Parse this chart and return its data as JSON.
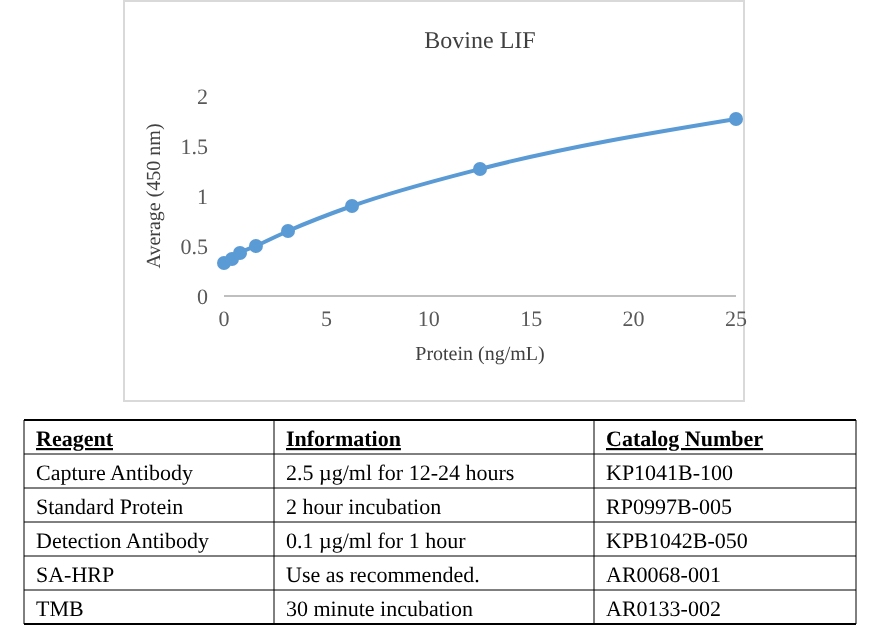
{
  "chart_data": {
    "type": "line",
    "title": "Bovine LIF",
    "xlabel": "Protein (ng/mL)",
    "ylabel": "Average (450 nm)",
    "x": [
      0,
      0.39,
      0.78,
      1.56,
      3.125,
      6.25,
      12.5,
      25
    ],
    "series": [
      {
        "color": "#5b9bd5",
        "values": [
          0.33,
          0.37,
          0.43,
          0.5,
          0.65,
          0.9,
          1.27,
          1.77
        ]
      }
    ],
    "xlim": [
      0,
      25
    ],
    "xticks": [
      0,
      5,
      10,
      15,
      20,
      25
    ],
    "ylim": [
      0,
      2
    ],
    "yticks": [
      0,
      0.5,
      1,
      1.5,
      2
    ],
    "marker": "circle",
    "line_style": "solid",
    "grid": false,
    "annotations": [
      "Reagent",
      "Information",
      "Catalog Number",
      "Capture Antibody",
      "2.5 µg/ml for 12-24 hours",
      "KP1041B-100",
      "Standard Protein",
      "2 hour incubation",
      "RP0997B-005",
      "Detection Antibody",
      "0.1 µg/ml for 1 hour",
      "KPB1042B-050",
      "SA-HRP",
      "Use as recommended.",
      "AR0068-001",
      "TMB",
      "30 minute incubation",
      "AR0133-002"
    ]
  }
}
